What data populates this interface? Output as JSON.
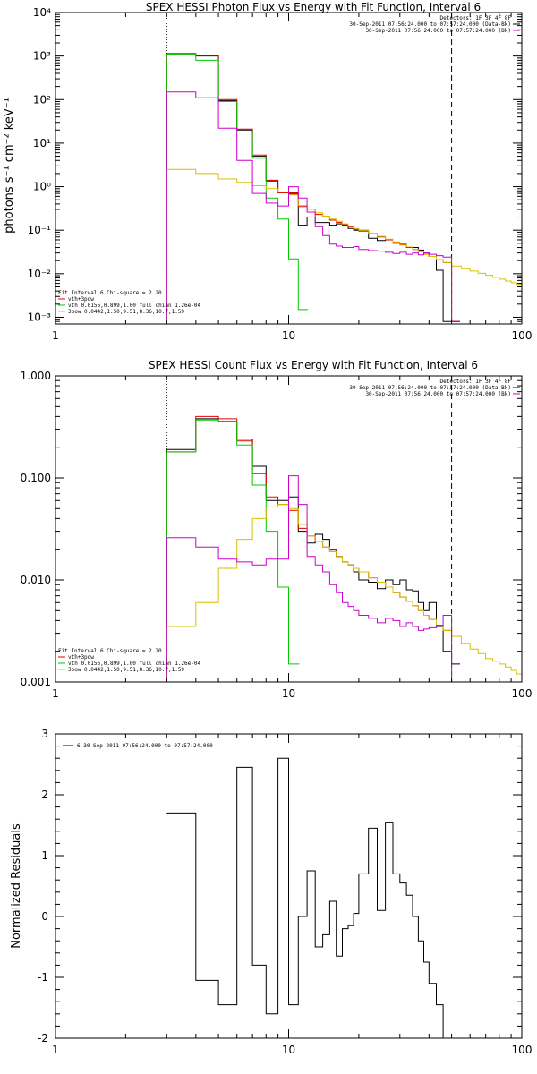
{
  "chart_data": [
    {
      "type": "line",
      "title": "SPEX HESSI Photon Flux vs Energy with Fit Function, Interval 6",
      "xlabel": "",
      "ylabel": "photons s⁻¹ cm⁻² keV⁻¹",
      "xscale": "log",
      "yscale": "log",
      "xlim": [
        1,
        100
      ],
      "ylim": [
        0.0007,
        10000
      ],
      "x_ticks": [
        "1",
        "10",
        "100"
      ],
      "y_ticks": [
        "10⁻³",
        "10⁻²",
        "10⁻¹",
        "10⁰",
        "10¹",
        "10²",
        "10³",
        "10⁴"
      ],
      "vlines": [
        {
          "x": 3,
          "style": "dotted"
        },
        {
          "x": 50,
          "style": "dashed"
        }
      ],
      "legend_top": [
        "Detectors: 1F 3F 4F 8F",
        "30-Sep-2011 07:56:24.000 to 07:57:24.000 (Data-Bk)",
        "30-Sep-2011 07:56:24.000 to 07:57:24.000 (Bk)"
      ],
      "legend_bottom": [
        "Fit Interval 6   Chi-square = 2.20",
        "vth+3pow",
        "vth 0.0156,0.899,1.00  full chian 1.26e-04",
        "3pow 0.0442,1.50,9.51,8.36,10.7,1.59"
      ],
      "legend_colors": [
        "#000000",
        "#e00000",
        "#00cc00",
        "#d8c000"
      ],
      "colors": {
        "data": "#000000",
        "bk": "#cc00cc",
        "total": "#e00000",
        "vth": "#00cc00",
        "pow": "#d8c000"
      },
      "series": [
        {
          "name": "Data-Bk",
          "color": "#000000",
          "x": [
            3,
            4,
            5,
            6,
            7,
            8,
            9,
            10,
            11,
            12,
            13,
            14,
            15,
            16,
            17,
            18,
            19,
            20,
            22,
            24,
            26,
            28,
            30,
            32,
            34,
            36,
            38,
            40,
            43,
            46,
            50
          ],
          "values": [
            1080,
            1000,
            95,
            20,
            5.0,
            1.35,
            0.72,
            0.68,
            0.13,
            0.2,
            0.15,
            0.15,
            0.13,
            0.14,
            0.13,
            0.11,
            0.1,
            0.1,
            0.065,
            0.058,
            0.06,
            0.05,
            0.048,
            0.04,
            0.04,
            0.035,
            0.03,
            0.025,
            0.012,
            0.0008,
            0.0008
          ]
        },
        {
          "name": "vth+3pow",
          "color": "#e00000",
          "x": [
            3,
            4,
            5,
            6,
            7,
            8,
            9,
            10,
            11,
            12,
            13,
            14,
            15,
            16,
            17,
            18,
            19,
            20,
            22,
            24,
            26,
            28,
            30,
            32,
            34,
            36,
            38,
            40,
            43,
            46,
            50
          ],
          "values": [
            1150,
            1020,
            100,
            21,
            5.3,
            1.4,
            0.72,
            0.72,
            0.35,
            0.3,
            0.23,
            0.2,
            0.17,
            0.15,
            0.135,
            0.12,
            0.105,
            0.095,
            0.082,
            0.07,
            0.06,
            0.052,
            0.046,
            0.041,
            0.036,
            0.032,
            0.028,
            0.025,
            0.021,
            0.018,
            0.0008
          ]
        },
        {
          "name": "vth",
          "color": "#00cc00",
          "x": [
            3,
            4,
            5,
            6,
            7,
            8,
            9,
            10,
            11
          ],
          "values": [
            1100,
            800,
            90,
            18,
            4.5,
            0.55,
            0.18,
            0.022,
            0.0015
          ]
        },
        {
          "name": "3pow",
          "color": "#d8c000",
          "x": [
            3,
            4,
            5,
            6,
            7,
            8,
            9,
            10,
            11,
            12,
            13,
            14,
            15,
            16,
            17,
            18,
            19,
            20,
            22,
            24,
            26,
            28,
            30,
            32,
            34,
            36,
            38,
            40,
            43,
            46,
            50,
            55,
            60,
            65,
            70,
            75,
            80,
            85,
            90,
            95,
            100
          ],
          "values": [
            2.5,
            2.0,
            1.5,
            1.25,
            1.05,
            0.9,
            0.75,
            0.65,
            0.37,
            0.3,
            0.25,
            0.21,
            0.18,
            0.16,
            0.14,
            0.125,
            0.11,
            0.1,
            0.085,
            0.072,
            0.062,
            0.054,
            0.047,
            0.041,
            0.036,
            0.032,
            0.028,
            0.025,
            0.021,
            0.018,
            0.015,
            0.013,
            0.0115,
            0.0102,
            0.0092,
            0.0083,
            0.0075,
            0.0068,
            0.0062,
            0.0057,
            0.0052
          ]
        },
        {
          "name": "Bk",
          "color": "#cc00cc",
          "x": [
            3,
            4,
            5,
            6,
            7,
            8,
            9,
            10,
            11,
            12,
            13,
            14,
            15,
            16,
            17,
            18,
            19,
            20,
            22,
            24,
            26,
            28,
            30,
            32,
            34,
            36,
            38,
            40,
            43,
            46,
            50
          ],
          "values": [
            150,
            110,
            22,
            4.0,
            0.7,
            0.42,
            0.36,
            1.0,
            0.55,
            0.26,
            0.12,
            0.075,
            0.048,
            0.043,
            0.04,
            0.04,
            0.042,
            0.036,
            0.034,
            0.033,
            0.031,
            0.029,
            0.031,
            0.028,
            0.03,
            0.027,
            0.03,
            0.028,
            0.026,
            0.024,
            0.0008
          ]
        }
      ]
    },
    {
      "type": "line",
      "title": "SPEX HESSI Count Flux vs Energy with Fit Function, Interval 6",
      "xlabel": "",
      "ylabel": "",
      "xscale": "log",
      "yscale": "log",
      "xlim": [
        1,
        100
      ],
      "ylim": [
        0.001,
        1.0
      ],
      "x_ticks": [
        "1",
        "10",
        "100"
      ],
      "y_ticks": [
        "0.001",
        "0.010",
        "0.100",
        "1.000"
      ],
      "vlines": [
        {
          "x": 3,
          "style": "dotted"
        },
        {
          "x": 50,
          "style": "dashed"
        }
      ],
      "legend_top": [
        "Detectors: 1F 3F 4F 8F",
        "30-Sep-2011 07:56:24.000 to 07:57:24.000 (Data-Bk)",
        "30-Sep-2011 07:56:24.000 to 07:57:24.000 (Bk)"
      ],
      "legend_bottom": [
        "Fit Interval 6   Chi-square = 2.20",
        "vth+3pow",
        "vth 0.0156,0.899,1.00  full chian 1.26e-04",
        "3pow 0.0442,1.50,9.51,8.36,10.7,1.59"
      ],
      "legend_colors": [
        "#000000",
        "#e00000",
        "#00cc00",
        "#d8c000"
      ],
      "series": [
        {
          "name": "Data-Bk",
          "color": "#000000",
          "x": [
            3,
            4,
            5,
            6,
            7,
            8,
            9,
            10,
            11,
            12,
            13,
            14,
            15,
            16,
            17,
            18,
            19,
            20,
            22,
            24,
            26,
            28,
            30,
            32,
            34,
            36,
            38,
            40,
            43,
            46,
            50
          ],
          "values": [
            0.19,
            0.38,
            0.36,
            0.24,
            0.13,
            0.06,
            0.06,
            0.065,
            0.03,
            0.023,
            0.028,
            0.025,
            0.02,
            0.017,
            0.015,
            0.014,
            0.012,
            0.01,
            0.0095,
            0.0082,
            0.01,
            0.009,
            0.01,
            0.008,
            0.0078,
            0.006,
            0.005,
            0.006,
            0.0035,
            0.002,
            0.0015
          ]
        },
        {
          "name": "vth+3pow",
          "color": "#e00000",
          "x": [
            3,
            4,
            5,
            6,
            7,
            8,
            9,
            10,
            11,
            12,
            13,
            14,
            15,
            16,
            17,
            18,
            19,
            20,
            22,
            24,
            26,
            28,
            30,
            32,
            34,
            36,
            38,
            40,
            43,
            46,
            50
          ],
          "values": [
            0.18,
            0.4,
            0.38,
            0.23,
            0.11,
            0.065,
            0.055,
            0.048,
            0.032,
            0.027,
            0.024,
            0.021,
            0.019,
            0.017,
            0.015,
            0.014,
            0.013,
            0.012,
            0.0105,
            0.0095,
            0.0085,
            0.0075,
            0.0068,
            0.0062,
            0.0056,
            0.005,
            0.0045,
            0.0041,
            0.0036,
            0.0032,
            0.0028
          ]
        },
        {
          "name": "vth",
          "color": "#00cc00",
          "x": [
            3,
            4,
            5,
            6,
            7,
            8,
            9,
            10
          ],
          "values": [
            0.18,
            0.37,
            0.36,
            0.21,
            0.085,
            0.03,
            0.0085,
            0.0015
          ]
        },
        {
          "name": "3pow",
          "color": "#d8c000",
          "x": [
            3,
            4,
            5,
            6,
            7,
            8,
            9,
            10,
            11,
            12,
            13,
            14,
            15,
            16,
            17,
            18,
            19,
            20,
            22,
            24,
            26,
            28,
            30,
            32,
            34,
            36,
            38,
            40,
            43,
            46,
            50,
            55,
            60,
            65,
            70,
            75,
            80,
            85,
            90,
            95,
            100
          ],
          "values": [
            0.0035,
            0.006,
            0.013,
            0.025,
            0.04,
            0.052,
            0.055,
            0.05,
            0.035,
            0.027,
            0.024,
            0.021,
            0.019,
            0.017,
            0.015,
            0.014,
            0.013,
            0.012,
            0.0105,
            0.0095,
            0.0085,
            0.0075,
            0.0068,
            0.0062,
            0.0056,
            0.005,
            0.0045,
            0.0041,
            0.0036,
            0.0032,
            0.0028,
            0.0024,
            0.0021,
            0.0019,
            0.0017,
            0.0016,
            0.0015,
            0.0014,
            0.0013,
            0.0012,
            0.0011
          ]
        },
        {
          "name": "Bk",
          "color": "#cc00cc",
          "x": [
            3,
            4,
            5,
            6,
            7,
            8,
            9,
            10,
            11,
            12,
            13,
            14,
            15,
            16,
            17,
            18,
            19,
            20,
            22,
            24,
            26,
            28,
            30,
            32,
            34,
            36,
            38,
            40,
            43,
            46,
            50
          ],
          "values": [
            0.026,
            0.021,
            0.016,
            0.015,
            0.014,
            0.016,
            0.016,
            0.105,
            0.055,
            0.017,
            0.014,
            0.012,
            0.009,
            0.0075,
            0.006,
            0.0055,
            0.005,
            0.0045,
            0.0042,
            0.0038,
            0.0042,
            0.004,
            0.0035,
            0.0038,
            0.0035,
            0.0032,
            0.0033,
            0.0034,
            0.0036,
            0.0045,
            0.001
          ]
        }
      ]
    },
    {
      "type": "line",
      "title": "",
      "xlabel": "",
      "ylabel": "Normalized Residuals",
      "xscale": "log",
      "xlim": [
        1,
        100
      ],
      "ylim": [
        -2,
        3
      ],
      "x_ticks": [
        "1",
        "10",
        "100"
      ],
      "y_ticks": [
        "-2",
        "-1",
        "0",
        "1",
        "2",
        "3"
      ],
      "legend_top": [
        "6  30-Sep-2011 07:56:24.000 to 07:57:24.000"
      ],
      "series": [
        {
          "name": "",
          "color": "#000000",
          "edges": [
            3,
            4,
            5,
            6,
            7,
            8,
            9,
            10,
            11,
            12,
            13,
            14,
            15,
            16,
            17,
            18,
            19,
            20,
            22,
            24,
            26,
            28,
            30,
            32,
            34,
            36,
            38,
            40,
            43,
            46,
            50
          ],
          "values": [
            1.7,
            -1.05,
            -1.45,
            2.45,
            -0.8,
            -1.6,
            2.6,
            -1.45,
            0.0,
            0.75,
            -0.5,
            -0.3,
            0.25,
            -0.65,
            -0.2,
            -0.15,
            0.05,
            0.7,
            1.45,
            0.1,
            1.55,
            0.7,
            0.55,
            0.35,
            0.0,
            -0.4,
            -0.75,
            -1.1,
            -1.45,
            -2.0
          ]
        }
      ]
    }
  ]
}
